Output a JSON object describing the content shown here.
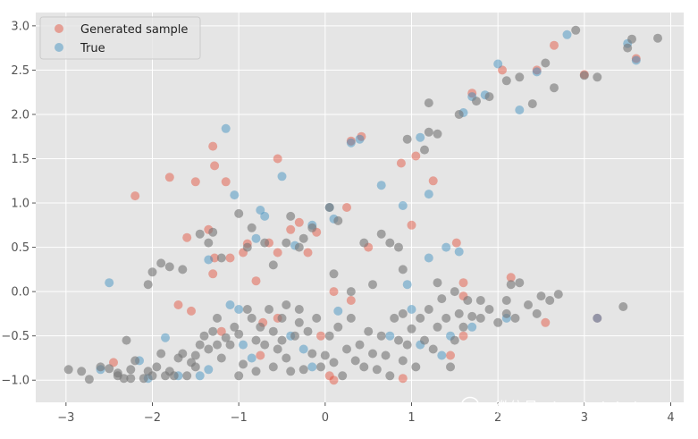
{
  "chart_data": {
    "type": "scatter",
    "title": "",
    "xlabel": "",
    "ylabel": "",
    "xlim": [
      -3.35,
      4.15
    ],
    "ylim": [
      -1.25,
      3.15
    ],
    "xticks": [
      -3,
      -2,
      -1,
      0,
      1,
      2,
      3,
      4
    ],
    "yticks": [
      -1.0,
      -0.5,
      0.0,
      0.5,
      1.0,
      1.5,
      2.0,
      2.5,
      3.0
    ],
    "ytick_labels": [
      "−1.0",
      "−0.5",
      "0.0",
      "0.5",
      "1.0",
      "1.5",
      "2.0",
      "2.5",
      "3.0"
    ],
    "xtick_labels": [
      "−3",
      "−2",
      "−1",
      "0",
      "1",
      "2",
      "3",
      "4"
    ],
    "grid": true,
    "background": "#e5e5e5",
    "legend": {
      "position": "top-left"
    },
    "series": [
      {
        "name": "Generated sample",
        "color": "#e24a33",
        "points": [
          [
            -2.2,
            1.08
          ],
          [
            -1.8,
            1.29
          ],
          [
            -1.5,
            1.24
          ],
          [
            -1.3,
            1.64
          ],
          [
            -1.28,
            1.42
          ],
          [
            -1.15,
            1.24
          ],
          [
            -0.55,
            1.5
          ],
          [
            -1.6,
            0.61
          ],
          [
            -1.35,
            0.7
          ],
          [
            -1.28,
            0.38
          ],
          [
            -1.3,
            0.2
          ],
          [
            -1.1,
            0.38
          ],
          [
            -0.95,
            0.44
          ],
          [
            -0.9,
            0.54
          ],
          [
            -0.65,
            0.55
          ],
          [
            -0.55,
            0.44
          ],
          [
            -0.4,
            0.7
          ],
          [
            -0.3,
            0.78
          ],
          [
            -0.2,
            0.44
          ],
          [
            -0.1,
            0.67
          ],
          [
            0.25,
            0.95
          ],
          [
            1.0,
            0.75
          ],
          [
            1.05,
            1.53
          ],
          [
            0.88,
            1.45
          ],
          [
            0.3,
            1.7
          ],
          [
            0.42,
            1.75
          ],
          [
            1.25,
            1.25
          ],
          [
            1.52,
            0.55
          ],
          [
            1.6,
            0.1
          ],
          [
            1.6,
            -0.05
          ],
          [
            2.15,
            0.16
          ],
          [
            0.5,
            0.5
          ],
          [
            -1.7,
            -0.15
          ],
          [
            -1.55,
            -0.22
          ],
          [
            -0.8,
            0.12
          ],
          [
            -0.75,
            -0.72
          ],
          [
            -0.72,
            -0.35
          ],
          [
            0.1,
            0.0
          ],
          [
            0.3,
            -0.1
          ],
          [
            -0.05,
            -0.5
          ],
          [
            0.05,
            -0.95
          ],
          [
            0.1,
            -1.0
          ],
          [
            0.9,
            -0.98
          ],
          [
            1.45,
            -0.72
          ],
          [
            1.6,
            -0.5
          ],
          [
            -2.45,
            -0.8
          ],
          [
            -1.2,
            -0.45
          ],
          [
            -0.55,
            -0.3
          ],
          [
            2.55,
            -0.35
          ],
          [
            3.15,
            -0.3
          ],
          [
            2.45,
            2.5
          ],
          [
            2.65,
            2.78
          ],
          [
            3.0,
            2.45
          ],
          [
            3.6,
            2.63
          ],
          [
            1.7,
            2.24
          ],
          [
            2.05,
            2.5
          ]
        ]
      },
      {
        "name": "True",
        "color": "#348abd",
        "points": [
          [
            -2.5,
            0.1
          ],
          [
            -1.15,
            1.84
          ],
          [
            -1.05,
            1.09
          ],
          [
            -0.7,
            0.85
          ],
          [
            -0.75,
            0.92
          ],
          [
            -0.5,
            1.3
          ],
          [
            0.1,
            0.82
          ],
          [
            0.05,
            0.95
          ],
          [
            -0.15,
            0.75
          ],
          [
            -0.35,
            0.52
          ],
          [
            -0.8,
            0.6
          ],
          [
            -1.35,
            0.36
          ],
          [
            -1.1,
            -0.15
          ],
          [
            -1.85,
            -0.52
          ],
          [
            -2.05,
            -0.98
          ],
          [
            -1.45,
            -0.95
          ],
          [
            -0.95,
            -0.6
          ],
          [
            -0.85,
            -0.75
          ],
          [
            -0.4,
            -0.5
          ],
          [
            -0.25,
            -0.65
          ],
          [
            0.15,
            -0.22
          ],
          [
            0.75,
            -0.5
          ],
          [
            0.95,
            0.08
          ],
          [
            1.0,
            -0.2
          ],
          [
            1.1,
            -0.6
          ],
          [
            1.2,
            0.38
          ],
          [
            1.4,
            0.5
          ],
          [
            1.55,
            0.45
          ],
          [
            1.35,
            -0.72
          ],
          [
            1.45,
            -0.5
          ],
          [
            1.2,
            1.1
          ],
          [
            0.9,
            0.97
          ],
          [
            0.65,
            1.2
          ],
          [
            0.3,
            1.68
          ],
          [
            0.4,
            1.72
          ],
          [
            1.1,
            1.74
          ],
          [
            1.6,
            2.02
          ],
          [
            1.7,
            2.2
          ],
          [
            1.85,
            2.22
          ],
          [
            2.0,
            2.57
          ],
          [
            2.25,
            2.05
          ],
          [
            2.45,
            2.48
          ],
          [
            2.8,
            2.9
          ],
          [
            3.5,
            2.8
          ],
          [
            3.6,
            2.61
          ],
          [
            3.15,
            -0.3
          ],
          [
            2.1,
            -0.3
          ],
          [
            1.7,
            -0.4
          ],
          [
            -0.15,
            -0.85
          ],
          [
            -1.35,
            -0.88
          ],
          [
            -2.15,
            -0.78
          ],
          [
            -2.6,
            -0.88
          ],
          [
            -1.7,
            -0.95
          ],
          [
            -1.0,
            -0.2
          ]
        ]
      },
      {
        "name": "",
        "color": "#777777",
        "points": [
          [
            -2.97,
            -0.88
          ],
          [
            -2.82,
            -0.9
          ],
          [
            -2.73,
            -0.99
          ],
          [
            -2.6,
            -0.85
          ],
          [
            -2.5,
            -0.87
          ],
          [
            -2.4,
            -0.92
          ],
          [
            -2.33,
            -0.98
          ],
          [
            -2.3,
            -0.55
          ],
          [
            -2.25,
            -0.88
          ],
          [
            -2.2,
            -0.78
          ],
          [
            -2.1,
            -0.98
          ],
          [
            -2.05,
            -0.9
          ],
          [
            -2.0,
            -0.95
          ],
          [
            -1.95,
            -0.85
          ],
          [
            -1.9,
            -0.7
          ],
          [
            -1.85,
            -0.95
          ],
          [
            -1.8,
            -0.9
          ],
          [
            -1.75,
            -0.95
          ],
          [
            -1.7,
            -0.75
          ],
          [
            -1.65,
            -0.7
          ],
          [
            -1.6,
            -0.95
          ],
          [
            -1.55,
            -0.8
          ],
          [
            -1.5,
            -0.72
          ],
          [
            -1.45,
            -0.6
          ],
          [
            -1.4,
            -0.5
          ],
          [
            -1.35,
            -0.65
          ],
          [
            -1.3,
            -0.45
          ],
          [
            -1.25,
            -0.6
          ],
          [
            -1.2,
            -0.75
          ],
          [
            -1.15,
            -0.52
          ],
          [
            -1.1,
            -0.6
          ],
          [
            -1.05,
            -0.4
          ],
          [
            -1.0,
            -0.48
          ],
          [
            -0.95,
            -0.82
          ],
          [
            -0.9,
            -0.2
          ],
          [
            -0.85,
            -0.3
          ],
          [
            -0.8,
            -0.55
          ],
          [
            -0.75,
            -0.4
          ],
          [
            -0.7,
            -0.6
          ],
          [
            -0.65,
            -0.2
          ],
          [
            -0.6,
            -0.45
          ],
          [
            -0.55,
            -0.65
          ],
          [
            -0.5,
            -0.3
          ],
          [
            -0.45,
            -0.75
          ],
          [
            -0.4,
            -0.9
          ],
          [
            -0.35,
            -0.5
          ],
          [
            -0.3,
            -0.2
          ],
          [
            -0.25,
            -0.88
          ],
          [
            -0.2,
            -0.45
          ],
          [
            -0.15,
            -0.7
          ],
          [
            -0.1,
            -0.3
          ],
          [
            -0.05,
            -0.85
          ],
          [
            0.0,
            -0.72
          ],
          [
            0.05,
            -0.5
          ],
          [
            0.1,
            -0.8
          ],
          [
            0.15,
            -0.4
          ],
          [
            0.2,
            -0.95
          ],
          [
            0.25,
            -0.65
          ],
          [
            0.3,
            -0.3
          ],
          [
            0.35,
            -0.78
          ],
          [
            0.4,
            -0.6
          ],
          [
            0.45,
            -0.85
          ],
          [
            0.5,
            -0.45
          ],
          [
            0.55,
            -0.7
          ],
          [
            0.6,
            -0.88
          ],
          [
            0.65,
            -0.5
          ],
          [
            0.7,
            -0.72
          ],
          [
            0.75,
            -0.95
          ],
          [
            0.8,
            -0.3
          ],
          [
            0.85,
            -0.55
          ],
          [
            0.9,
            -0.78
          ],
          [
            0.95,
            -0.6
          ],
          [
            1.0,
            -0.42
          ],
          [
            1.05,
            -0.85
          ],
          [
            1.1,
            -0.3
          ],
          [
            1.15,
            -0.55
          ],
          [
            1.2,
            -0.2
          ],
          [
            1.25,
            -0.65
          ],
          [
            1.3,
            -0.4
          ],
          [
            1.35,
            -0.08
          ],
          [
            1.4,
            -0.3
          ],
          [
            1.45,
            -0.85
          ],
          [
            1.5,
            -0.55
          ],
          [
            1.55,
            -0.25
          ],
          [
            1.6,
            -0.4
          ],
          [
            1.65,
            -0.1
          ],
          [
            1.7,
            -0.28
          ],
          [
            1.8,
            -0.3
          ],
          [
            1.9,
            -0.2
          ],
          [
            2.0,
            -0.35
          ],
          [
            2.1,
            -0.1
          ],
          [
            2.2,
            -0.3
          ],
          [
            2.25,
            0.1
          ],
          [
            2.35,
            -0.15
          ],
          [
            2.45,
            -0.25
          ],
          [
            2.5,
            -0.05
          ],
          [
            2.6,
            -0.1
          ],
          [
            2.7,
            -0.03
          ],
          [
            3.45,
            -0.17
          ],
          [
            -2.05,
            0.08
          ],
          [
            -2.0,
            0.22
          ],
          [
            -1.9,
            0.32
          ],
          [
            -1.8,
            0.28
          ],
          [
            -1.65,
            0.25
          ],
          [
            -1.45,
            0.65
          ],
          [
            -1.35,
            0.55
          ],
          [
            -1.3,
            0.67
          ],
          [
            -1.2,
            0.38
          ],
          [
            -1.0,
            0.88
          ],
          [
            -0.9,
            0.5
          ],
          [
            -0.85,
            0.72
          ],
          [
            -0.7,
            0.55
          ],
          [
            -0.6,
            0.3
          ],
          [
            -0.45,
            0.55
          ],
          [
            -0.4,
            0.85
          ],
          [
            -0.3,
            0.5
          ],
          [
            -0.25,
            0.6
          ],
          [
            -0.15,
            0.72
          ],
          [
            0.05,
            0.95
          ],
          [
            0.15,
            0.8
          ],
          [
            0.45,
            0.55
          ],
          [
            0.65,
            0.65
          ],
          [
            0.75,
            0.55
          ],
          [
            0.85,
            0.5
          ],
          [
            0.95,
            1.72
          ],
          [
            1.15,
            1.6
          ],
          [
            1.2,
            1.8
          ],
          [
            1.3,
            1.78
          ],
          [
            1.2,
            2.13
          ],
          [
            1.55,
            2.0
          ],
          [
            1.75,
            2.15
          ],
          [
            1.9,
            2.2
          ],
          [
            2.1,
            2.38
          ],
          [
            2.25,
            2.42
          ],
          [
            2.4,
            2.12
          ],
          [
            2.55,
            2.58
          ],
          [
            2.65,
            2.3
          ],
          [
            2.9,
            2.95
          ],
          [
            3.0,
            2.44
          ],
          [
            3.15,
            2.42
          ],
          [
            3.55,
            2.85
          ],
          [
            3.85,
            2.86
          ],
          [
            3.5,
            2.75
          ],
          [
            2.15,
            0.08
          ],
          [
            0.9,
            0.25
          ],
          [
            0.9,
            -0.25
          ],
          [
            1.3,
            0.1
          ],
          [
            1.5,
            0.0
          ],
          [
            1.8,
            -0.1
          ],
          [
            -0.5,
            -0.55
          ],
          [
            -0.3,
            -0.35
          ],
          [
            0.1,
            0.2
          ],
          [
            0.3,
            0.0
          ],
          [
            -1.0,
            -0.95
          ],
          [
            -0.8,
            -0.9
          ],
          [
            -0.6,
            -0.85
          ],
          [
            -1.5,
            -0.85
          ],
          [
            -2.4,
            -0.95
          ],
          [
            -2.25,
            -0.98
          ],
          [
            -1.25,
            -0.3
          ],
          [
            -0.45,
            -0.15
          ],
          [
            0.55,
            0.08
          ],
          [
            2.1,
            -0.25
          ]
        ]
      }
    ]
  },
  "watermark": {
    "text": "微信号: deephub-imba"
  }
}
